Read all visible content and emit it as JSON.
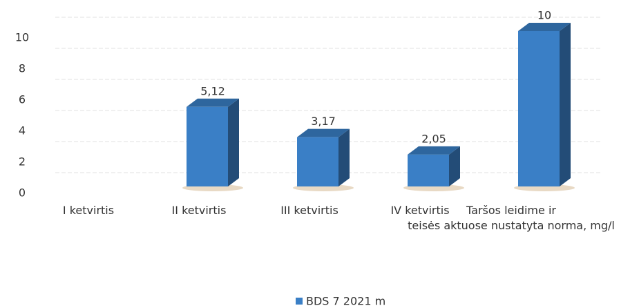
{
  "chart_data": {
    "type": "bar3d",
    "categories": [
      "I ketvirtis",
      "II ketvirtis",
      "III ketvirtis",
      "IV ketvirtis",
      "Taršos leidime ir\nteisės aktuose nustatyta norma, mg/l"
    ],
    "series": [
      {
        "name": "BDS 7 2021 m",
        "color": "#3a7fc6",
        "values": [
          null,
          5.12,
          3.17,
          2.05,
          10
        ],
        "value_labels": [
          null,
          "5,12",
          "3,17",
          "2,05",
          "10"
        ]
      }
    ],
    "ylim": [
      0,
      12
    ],
    "yticks": [
      0,
      2,
      4,
      6,
      8,
      10
    ],
    "grid": true,
    "legend": "bottom"
  }
}
